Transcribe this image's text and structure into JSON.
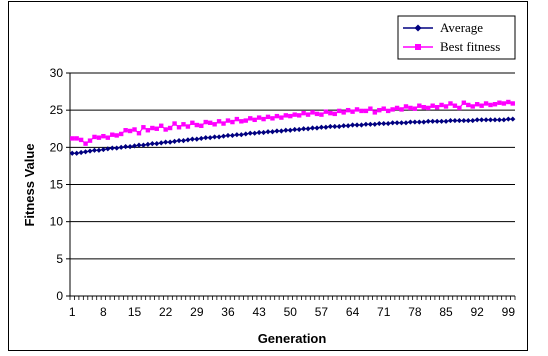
{
  "chart_data": {
    "type": "line",
    "xlabel": "Generation",
    "ylabel": "Fitness Value",
    "xlim": [
      1,
      100
    ],
    "ylim": [
      0,
      30
    ],
    "yticks": [
      0,
      5,
      10,
      15,
      20,
      25,
      30
    ],
    "xtick_labels": [
      "1",
      "8",
      "15",
      "22",
      "29",
      "36",
      "43",
      "50",
      "57",
      "64",
      "71",
      "78",
      "85",
      "92",
      "99"
    ],
    "grid": "horizontal",
    "legend_position": "top-right",
    "series": [
      {
        "name": "Average",
        "color": "#000080",
        "marker": "diamond",
        "values": [
          19.2,
          19.2,
          19.3,
          19.4,
          19.5,
          19.6,
          19.6,
          19.7,
          19.8,
          19.9,
          19.9,
          20.0,
          20.1,
          20.1,
          20.2,
          20.3,
          20.3,
          20.4,
          20.5,
          20.5,
          20.6,
          20.7,
          20.7,
          20.8,
          20.9,
          20.9,
          21.0,
          21.1,
          21.1,
          21.2,
          21.3,
          21.3,
          21.4,
          21.4,
          21.5,
          21.6,
          21.6,
          21.7,
          21.7,
          21.8,
          21.9,
          21.9,
          22.0,
          22.0,
          22.1,
          22.1,
          22.2,
          22.2,
          22.3,
          22.3,
          22.4,
          22.4,
          22.5,
          22.5,
          22.6,
          22.6,
          22.7,
          22.7,
          22.8,
          22.8,
          22.8,
          22.9,
          22.9,
          23.0,
          23.0,
          23.0,
          23.1,
          23.1,
          23.1,
          23.2,
          23.2,
          23.2,
          23.3,
          23.3,
          23.3,
          23.3,
          23.4,
          23.4,
          23.4,
          23.4,
          23.5,
          23.5,
          23.5,
          23.5,
          23.5,
          23.6,
          23.6,
          23.6,
          23.6,
          23.6,
          23.6,
          23.7,
          23.7,
          23.7,
          23.7,
          23.7,
          23.7,
          23.7,
          23.8,
          23.8
        ]
      },
      {
        "name": "Best fitness",
        "color": "#FF00FF",
        "marker": "square",
        "values": [
          21.2,
          21.2,
          21.0,
          20.5,
          20.9,
          21.4,
          21.3,
          21.5,
          21.3,
          21.7,
          21.6,
          21.8,
          22.3,
          22.2,
          22.4,
          21.9,
          22.7,
          22.3,
          22.6,
          22.5,
          22.9,
          22.4,
          22.6,
          23.2,
          22.7,
          23.1,
          22.8,
          23.3,
          23.0,
          22.9,
          23.4,
          23.3,
          23.1,
          23.5,
          23.2,
          23.6,
          23.4,
          23.8,
          23.5,
          23.6,
          23.9,
          23.7,
          24.0,
          23.8,
          24.1,
          23.9,
          24.2,
          24.0,
          24.3,
          24.2,
          24.4,
          24.3,
          24.6,
          24.4,
          24.7,
          24.5,
          24.4,
          24.8,
          24.6,
          24.5,
          24.9,
          24.7,
          25.0,
          24.8,
          25.1,
          24.9,
          24.9,
          25.2,
          24.7,
          25.0,
          25.2,
          24.9,
          25.1,
          25.3,
          25.1,
          25.5,
          25.3,
          25.2,
          25.6,
          25.4,
          25.3,
          25.6,
          25.4,
          25.7,
          25.5,
          25.9,
          25.6,
          25.3,
          26.0,
          25.7,
          25.5,
          25.8,
          25.6,
          25.9,
          25.7,
          25.8,
          26.0,
          25.9,
          26.1,
          25.9
        ]
      }
    ]
  }
}
